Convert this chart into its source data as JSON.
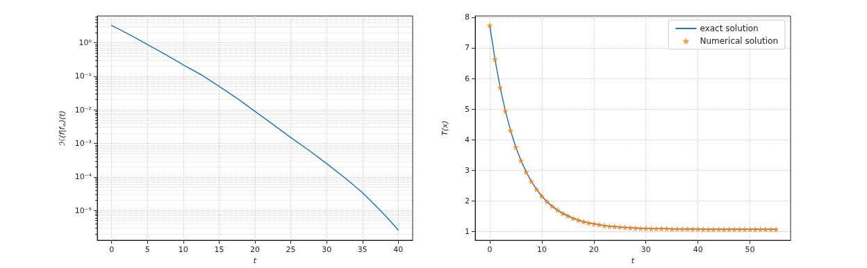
{
  "chart_data": [
    {
      "type": "line",
      "xlabel": "t",
      "ylabel": "ℋ(f|f$_{∞}$)(t)",
      "log": "y",
      "grid": true,
      "legend": false,
      "xlim": [
        -2,
        42
      ],
      "ylim": [
        1.3e-06,
        6.3
      ],
      "xticks": [
        0,
        5,
        10,
        15,
        20,
        25,
        30,
        35,
        40
      ],
      "yticks": [
        {
          "value": 1e-05,
          "label": "10⁻⁵"
        },
        {
          "value": 0.0001,
          "label": "10⁻⁴"
        },
        {
          "value": 0.001,
          "label": "10⁻³"
        },
        {
          "value": 0.01,
          "label": "10⁻²"
        },
        {
          "value": 0.1,
          "label": "10⁻¹"
        },
        {
          "value": 1,
          "label": "10⁰"
        }
      ],
      "series": [
        {
          "color": "#1f77b4",
          "marker": "none",
          "x": [
            0,
            2.5,
            5,
            7.5,
            10,
            12.5,
            15,
            17.5,
            20,
            22.5,
            25,
            27.5,
            30,
            32.5,
            35,
            37.5,
            38.5,
            40
          ],
          "values": [
            3.3,
            1.75,
            0.89,
            0.45,
            0.22,
            0.111,
            0.05,
            0.022,
            0.009,
            0.0037,
            0.0015,
            0.00063,
            0.00025,
            9.6e-05,
            3.4e-05,
            1e-05,
            6e-06,
            2.6e-06
          ]
        }
      ]
    },
    {
      "type": "line",
      "xlabel": "t",
      "ylabel": "T(x)",
      "grid": true,
      "legend": "top right",
      "xlim": [
        -2.8,
        57.8
      ],
      "ylim": [
        0.72,
        8.04
      ],
      "xticks": [
        0,
        10,
        20,
        30,
        40,
        50
      ],
      "yticks": [
        1,
        2,
        3,
        4,
        5,
        6,
        7,
        8
      ],
      "series": [
        {
          "name": "exact solution",
          "marker": "none",
          "line_style": "solid",
          "color": "#1f77b4",
          "x": [
            0,
            1,
            2,
            3,
            4,
            5,
            6,
            7,
            8,
            9,
            10,
            11,
            12,
            13,
            14,
            15,
            16,
            17,
            18,
            19,
            20,
            21,
            22,
            23,
            24,
            25,
            26,
            27,
            28,
            29,
            30,
            31,
            32,
            33,
            34,
            35,
            36,
            37,
            38,
            39,
            40,
            41,
            42,
            43,
            44,
            45,
            46,
            47,
            48,
            49,
            50,
            51,
            52,
            53,
            54,
            55
          ],
          "values": [
            7.73,
            6.63,
            5.71,
            4.94,
            4.3,
            3.76,
            3.32,
            2.95,
            2.64,
            2.38,
            2.16,
            1.98,
            1.83,
            1.71,
            1.6,
            1.52,
            1.44,
            1.38,
            1.33,
            1.29,
            1.26,
            1.23,
            1.2,
            1.18,
            1.17,
            1.15,
            1.14,
            1.13,
            1.12,
            1.11,
            1.11,
            1.1,
            1.1,
            1.1,
            1.1,
            1.09,
            1.09,
            1.09,
            1.09,
            1.09,
            1.09,
            1.08,
            1.08,
            1.08,
            1.08,
            1.08,
            1.08,
            1.08,
            1.08,
            1.08,
            1.08,
            1.08,
            1.08,
            1.08,
            1.08,
            1.08
          ]
        },
        {
          "name": "Numerical solution",
          "type": "scatter",
          "marker": "star",
          "color": "#ff7f0e",
          "x": [
            0,
            1,
            2,
            3,
            4,
            5,
            6,
            7,
            8,
            9,
            10,
            11,
            12,
            13,
            14,
            15,
            16,
            17,
            18,
            19,
            20,
            21,
            22,
            23,
            24,
            25,
            26,
            27,
            28,
            29,
            30,
            31,
            32,
            33,
            34,
            35,
            36,
            37,
            38,
            39,
            40,
            41,
            42,
            43,
            44,
            45,
            46,
            47,
            48,
            49,
            50,
            51,
            52,
            53,
            54,
            55
          ],
          "values": [
            7.73,
            6.63,
            5.71,
            4.94,
            4.3,
            3.76,
            3.32,
            2.95,
            2.64,
            2.38,
            2.16,
            1.98,
            1.83,
            1.71,
            1.6,
            1.52,
            1.44,
            1.38,
            1.33,
            1.29,
            1.26,
            1.23,
            1.2,
            1.18,
            1.17,
            1.15,
            1.14,
            1.13,
            1.12,
            1.11,
            1.11,
            1.1,
            1.1,
            1.1,
            1.1,
            1.09,
            1.09,
            1.09,
            1.09,
            1.09,
            1.09,
            1.08,
            1.08,
            1.08,
            1.08,
            1.08,
            1.08,
            1.08,
            1.08,
            1.08,
            1.08,
            1.08,
            1.08,
            1.08,
            1.08,
            1.08
          ]
        }
      ]
    }
  ]
}
